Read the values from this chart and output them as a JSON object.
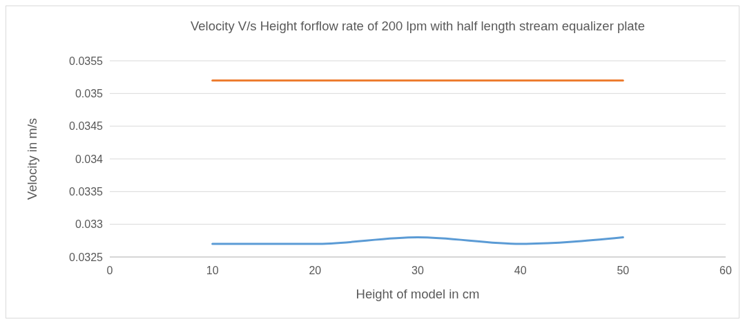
{
  "chart_data": {
    "type": "line",
    "title": "Velocity V/s Height forflow rate of 200 lpm with half length stream equalizer plate",
    "xlabel": "Height of model in cm",
    "ylabel": "Velocity in m/s",
    "x": [
      10,
      20,
      30,
      40,
      50
    ],
    "series": [
      {
        "color": "#5b9bd5",
        "values": [
          0.0327,
          0.0327,
          0.0328,
          0.0327,
          0.0328
        ]
      },
      {
        "color": "#ed7d31",
        "values": [
          0.0352,
          0.0352,
          0.0352,
          0.0352,
          0.0352
        ]
      }
    ],
    "xlim": [
      0,
      60
    ],
    "xticks": [
      0,
      10,
      20,
      30,
      40,
      50,
      60
    ],
    "ylim": [
      0.0325,
      0.0355
    ],
    "yticks": [
      0.0325,
      0.033,
      0.0335,
      0.034,
      0.0345,
      0.035,
      0.0355
    ],
    "grid": "y",
    "marker": "none",
    "line_style": "solid"
  }
}
